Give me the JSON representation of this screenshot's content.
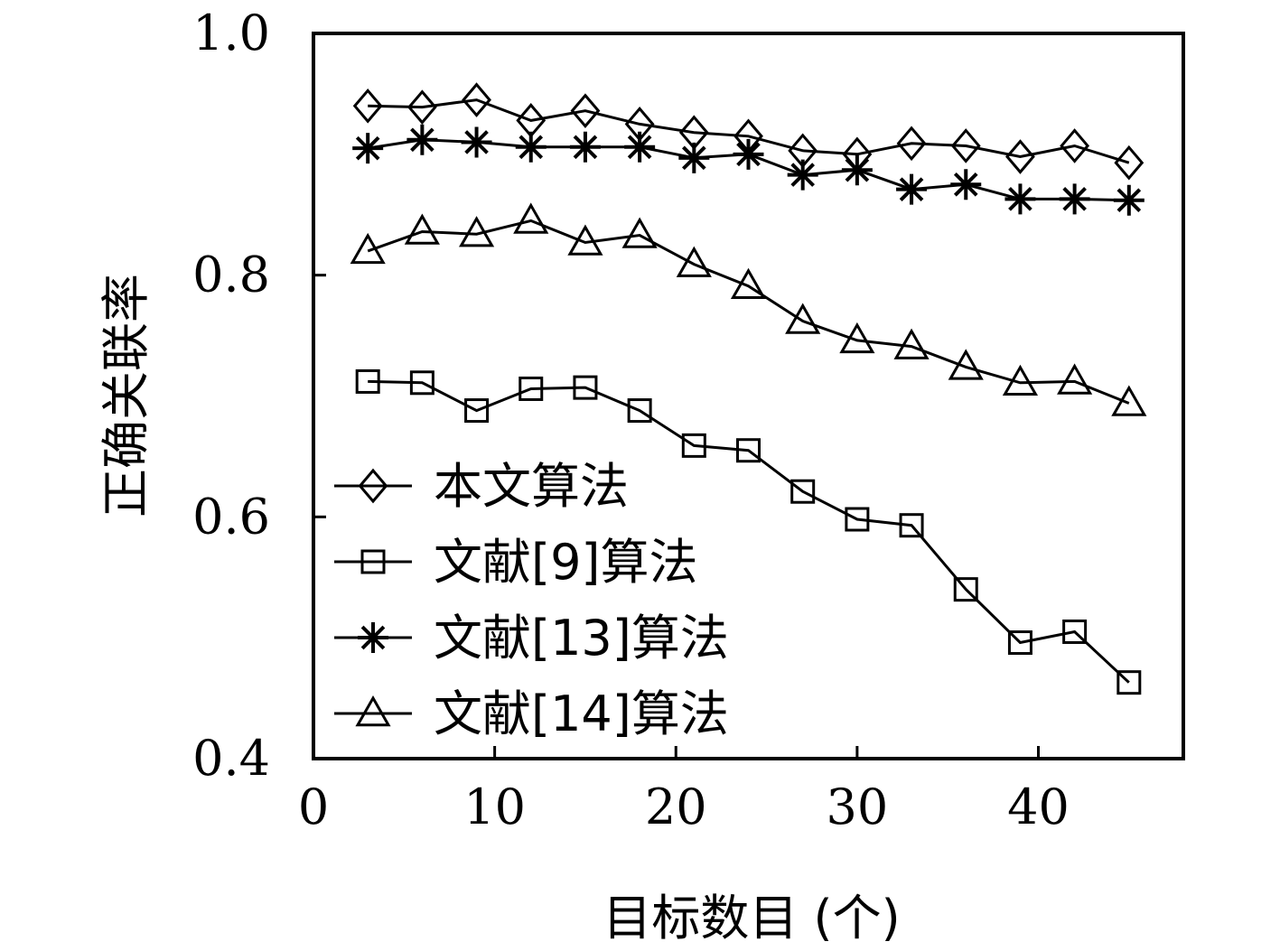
{
  "chart_data": {
    "type": "line",
    "xlabel": "目标数目 (个)",
    "ylabel": "正确关联率",
    "xlim": [
      0,
      48
    ],
    "ylim": [
      0.4,
      1.0
    ],
    "xticks": [
      "0",
      "10",
      "20",
      "30",
      "40"
    ],
    "yticks": [
      "0.4",
      "0.6",
      "0.8",
      "1.0"
    ],
    "grid": false,
    "legend_position": "bottom-left",
    "x": [
      3,
      6,
      9,
      12,
      15,
      18,
      21,
      24,
      27,
      30,
      33,
      36,
      39,
      42,
      45
    ],
    "series": [
      {
        "name": "本文算法",
        "marker": "diamond",
        "values": [
          0.94,
          0.939,
          0.945,
          0.928,
          0.936,
          0.925,
          0.918,
          0.915,
          0.903,
          0.9,
          0.909,
          0.907,
          0.898,
          0.907,
          0.893
        ]
      },
      {
        "name": "文献[9]算法",
        "marker": "square",
        "values": [
          0.712,
          0.711,
          0.688,
          0.706,
          0.707,
          0.688,
          0.659,
          0.655,
          0.621,
          0.598,
          0.593,
          0.54,
          0.496,
          0.505,
          0.463
        ]
      },
      {
        "name": "文献[13]算法",
        "marker": "asterisk",
        "values": [
          0.905,
          0.912,
          0.91,
          0.906,
          0.906,
          0.906,
          0.897,
          0.9,
          0.883,
          0.887,
          0.871,
          0.875,
          0.863,
          0.863,
          0.862
        ]
      },
      {
        "name": "文献[14]算法",
        "marker": "triangle",
        "values": [
          0.82,
          0.836,
          0.834,
          0.845,
          0.827,
          0.833,
          0.809,
          0.791,
          0.762,
          0.746,
          0.741,
          0.724,
          0.711,
          0.712,
          0.694
        ]
      }
    ]
  }
}
